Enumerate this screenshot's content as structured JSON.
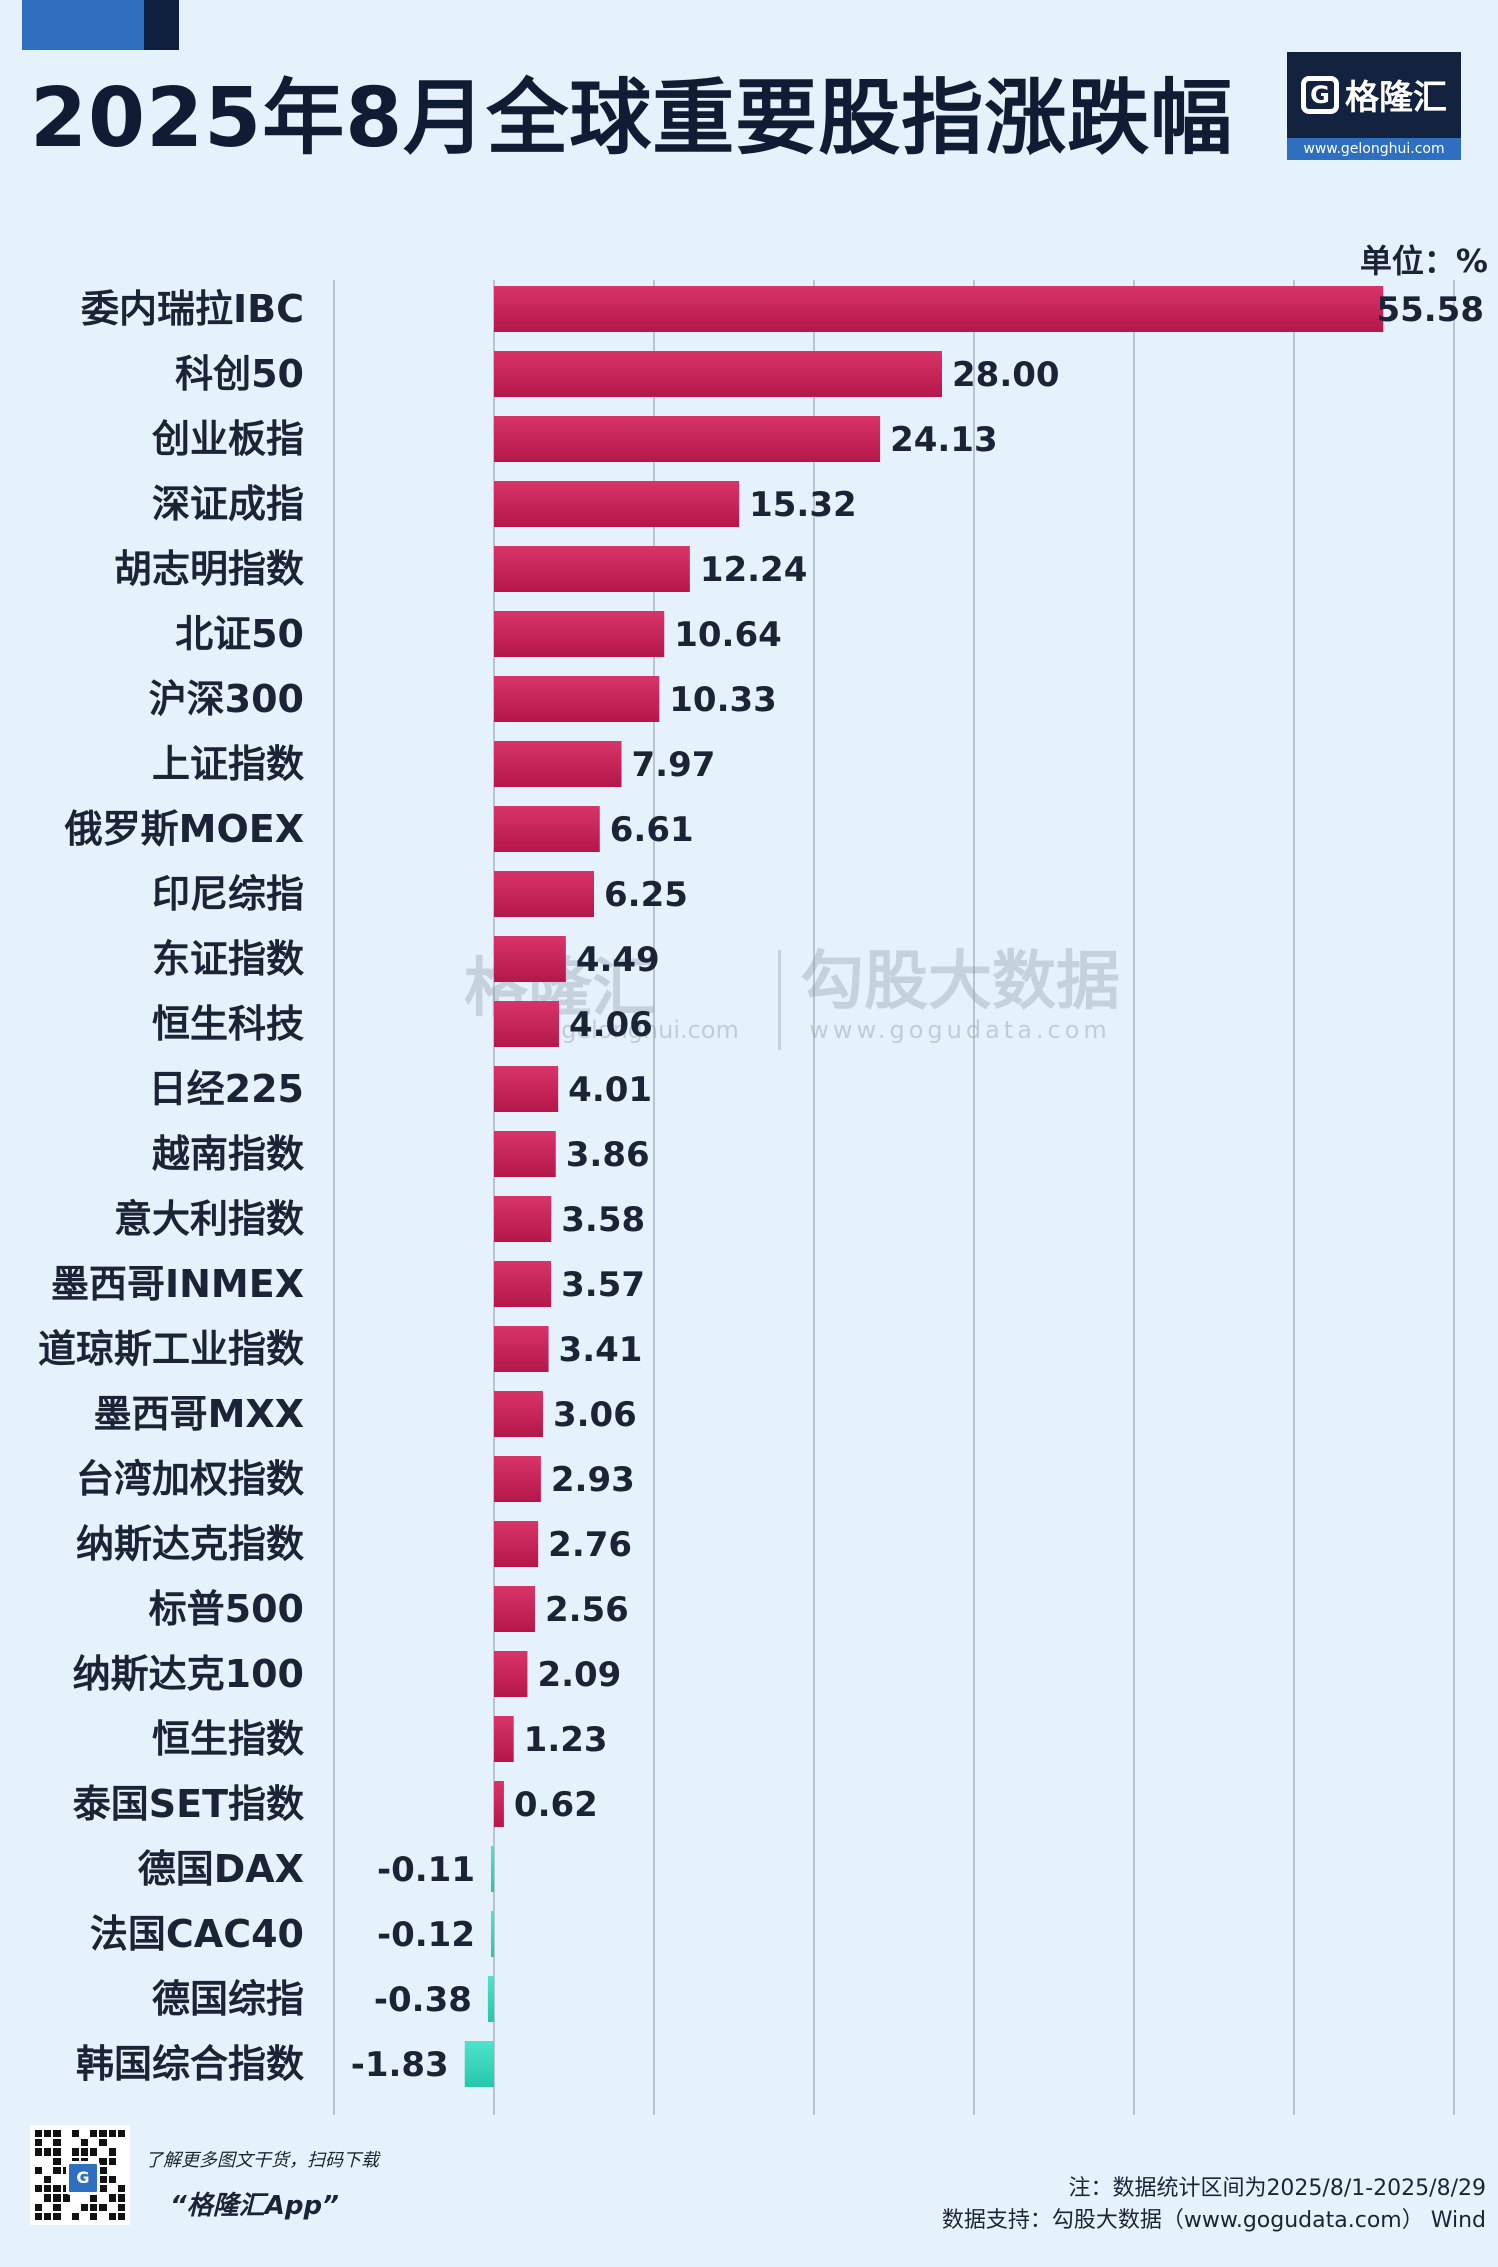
{
  "header": {
    "title": "2025年8月全球重要股指涨跌幅",
    "logo_name": "格隆汇",
    "logo_url": "www.gelonghui.com"
  },
  "colors": {
    "positive": "#c41e54",
    "negative": "#36d6bd",
    "grid": "#b8c4cf"
  },
  "chart_data": {
    "type": "bar",
    "orientation": "horizontal",
    "unit": "单位：%",
    "categories": [
      "委内瑞拉IBC",
      "科创50",
      "创业板指",
      "深证成指",
      "胡志明指数",
      "北证50",
      "沪深300",
      "上证指数",
      "俄罗斯MOEX",
      "印尼综指",
      "东证指数",
      "恒生科技",
      "日经225",
      "越南指数",
      "意大利指数",
      "墨西哥INMEX",
      "道琼斯工业指数",
      "墨西哥MXX",
      "台湾加权指数",
      "纳斯达克指数",
      "标普500",
      "纳斯达克100",
      "恒生指数",
      "泰国SET指数",
      "德国DAX",
      "法国CAC40",
      "德国综指",
      "韩国综合指数"
    ],
    "values": [
      55.58,
      28.0,
      24.13,
      15.32,
      12.24,
      10.64,
      10.33,
      7.97,
      6.61,
      6.25,
      4.49,
      4.06,
      4.01,
      3.86,
      3.58,
      3.57,
      3.41,
      3.06,
      2.93,
      2.76,
      2.56,
      2.09,
      1.23,
      0.62,
      -0.11,
      -0.12,
      -0.38,
      -1.83
    ],
    "value_labels": [
      "55.58",
      "28.00",
      "24.13",
      "15.32",
      "12.24",
      "10.64",
      "10.33",
      "7.97",
      "6.61",
      "6.25",
      "4.49",
      "4.06",
      "4.01",
      "3.86",
      "3.58",
      "3.57",
      "3.41",
      "3.06",
      "2.93",
      "2.76",
      "2.56",
      "2.09",
      "1.23",
      "0.62",
      "-0.11",
      "-0.12",
      "-0.38",
      "-1.83"
    ],
    "xlim": [
      -10,
      60
    ],
    "grid": true
  },
  "watermark": {
    "brand1": "格隆汇",
    "brand1_url": "gelonghui.com",
    "brand2": "勾股大数据",
    "brand2_url": "www.gogudata.com"
  },
  "footer": {
    "promo_text": "了解更多图文干货，扫码下载",
    "app_name": "“格隆汇App”",
    "qr_badge": "G",
    "note": "注：数据统计区间为2025/8/1-2025/8/29",
    "source": "数据支持：勾股大数据（www.gogudata.com） Wind"
  }
}
